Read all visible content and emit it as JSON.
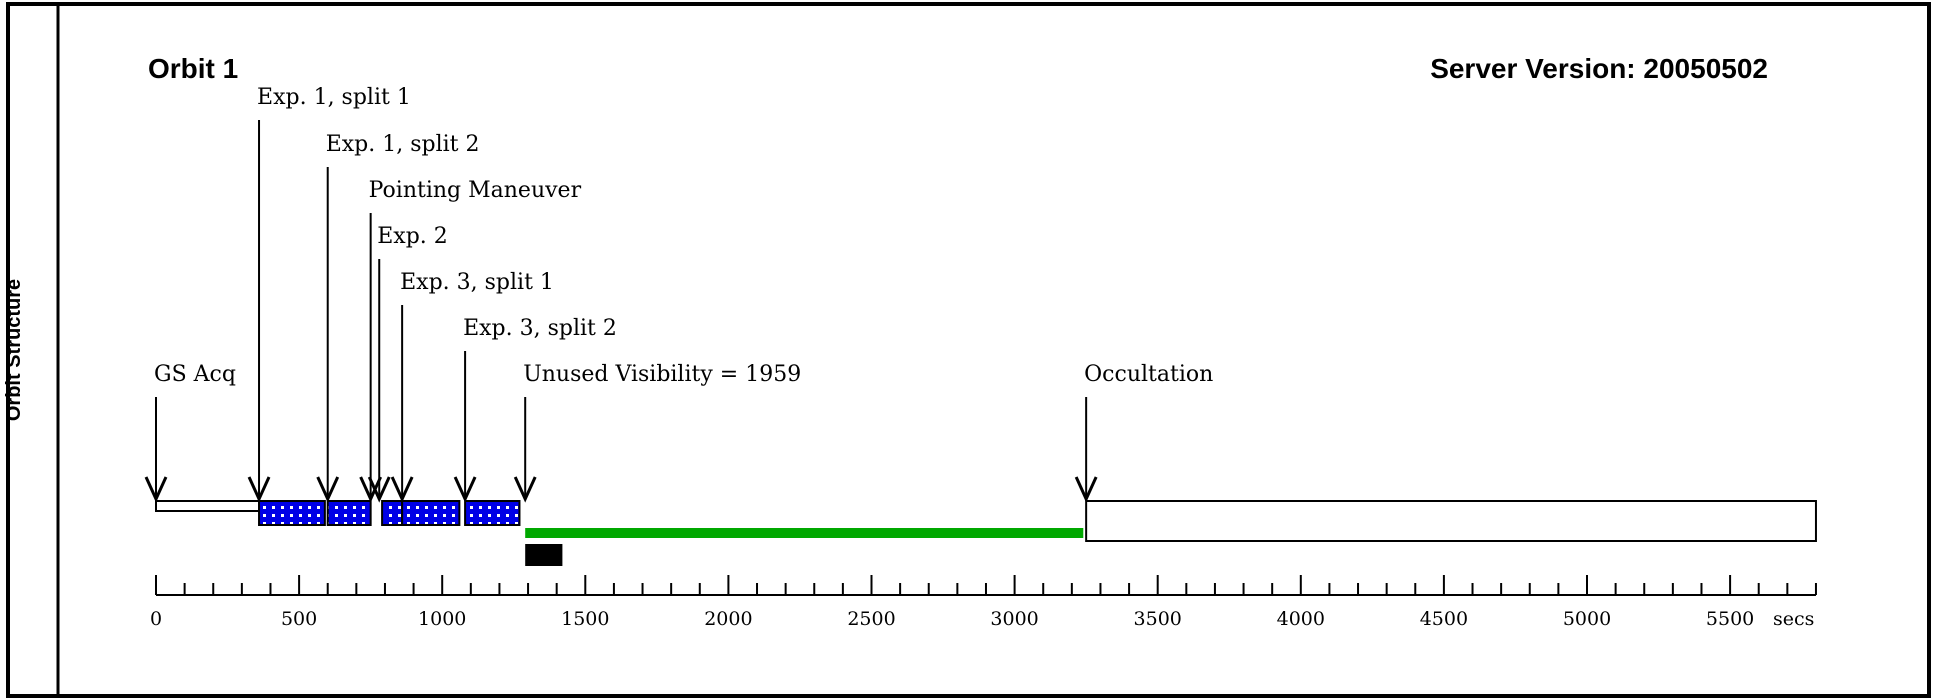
{
  "side_title": "Orbit Structure",
  "header": {
    "orbit_title": "Orbit 1",
    "server_version": "Server Version: 20050502"
  },
  "events": [
    {
      "label": "GS Acq",
      "time": 0
    },
    {
      "label": "Exp. 1, split 1",
      "time": 360
    },
    {
      "label": "Exp. 1, split 2",
      "time": 600
    },
    {
      "label": "Pointing Maneuver",
      "time": 750
    },
    {
      "label": "Exp. 2",
      "time": 780
    },
    {
      "label": "Exp. 3, split 1",
      "time": 860
    },
    {
      "label": "Exp. 3, split 2",
      "time": 1080
    },
    {
      "label": "Unused Visibility = 1959",
      "time": 1290
    },
    {
      "label": "Occultation",
      "time": 3250
    }
  ],
  "segments": [
    {
      "type": "acquisition",
      "start": 0,
      "end": 360
    },
    {
      "type": "exposure",
      "start": 360,
      "end": 590
    },
    {
      "type": "exposure",
      "start": 600,
      "end": 750
    },
    {
      "type": "exposure",
      "start": 790,
      "end": 860
    },
    {
      "type": "exposure",
      "start": 860,
      "end": 1060
    },
    {
      "type": "exposure",
      "start": 1080,
      "end": 1270
    },
    {
      "type": "unused",
      "start": 1290,
      "end": 3240
    },
    {
      "type": "occultation",
      "start": 3250,
      "end": 5800
    },
    {
      "type": "marker",
      "start": 1290,
      "end": 1420
    }
  ],
  "axis": {
    "ticks": [
      0,
      500,
      1000,
      1500,
      2000,
      2500,
      3000,
      3500,
      4000,
      4500,
      5000,
      5500
    ],
    "unit": "secs",
    "max": 5800
  },
  "colors": {
    "unused_visibility": "#00a800",
    "exposure_fill": "#0000e6",
    "marker": "#000000"
  }
}
